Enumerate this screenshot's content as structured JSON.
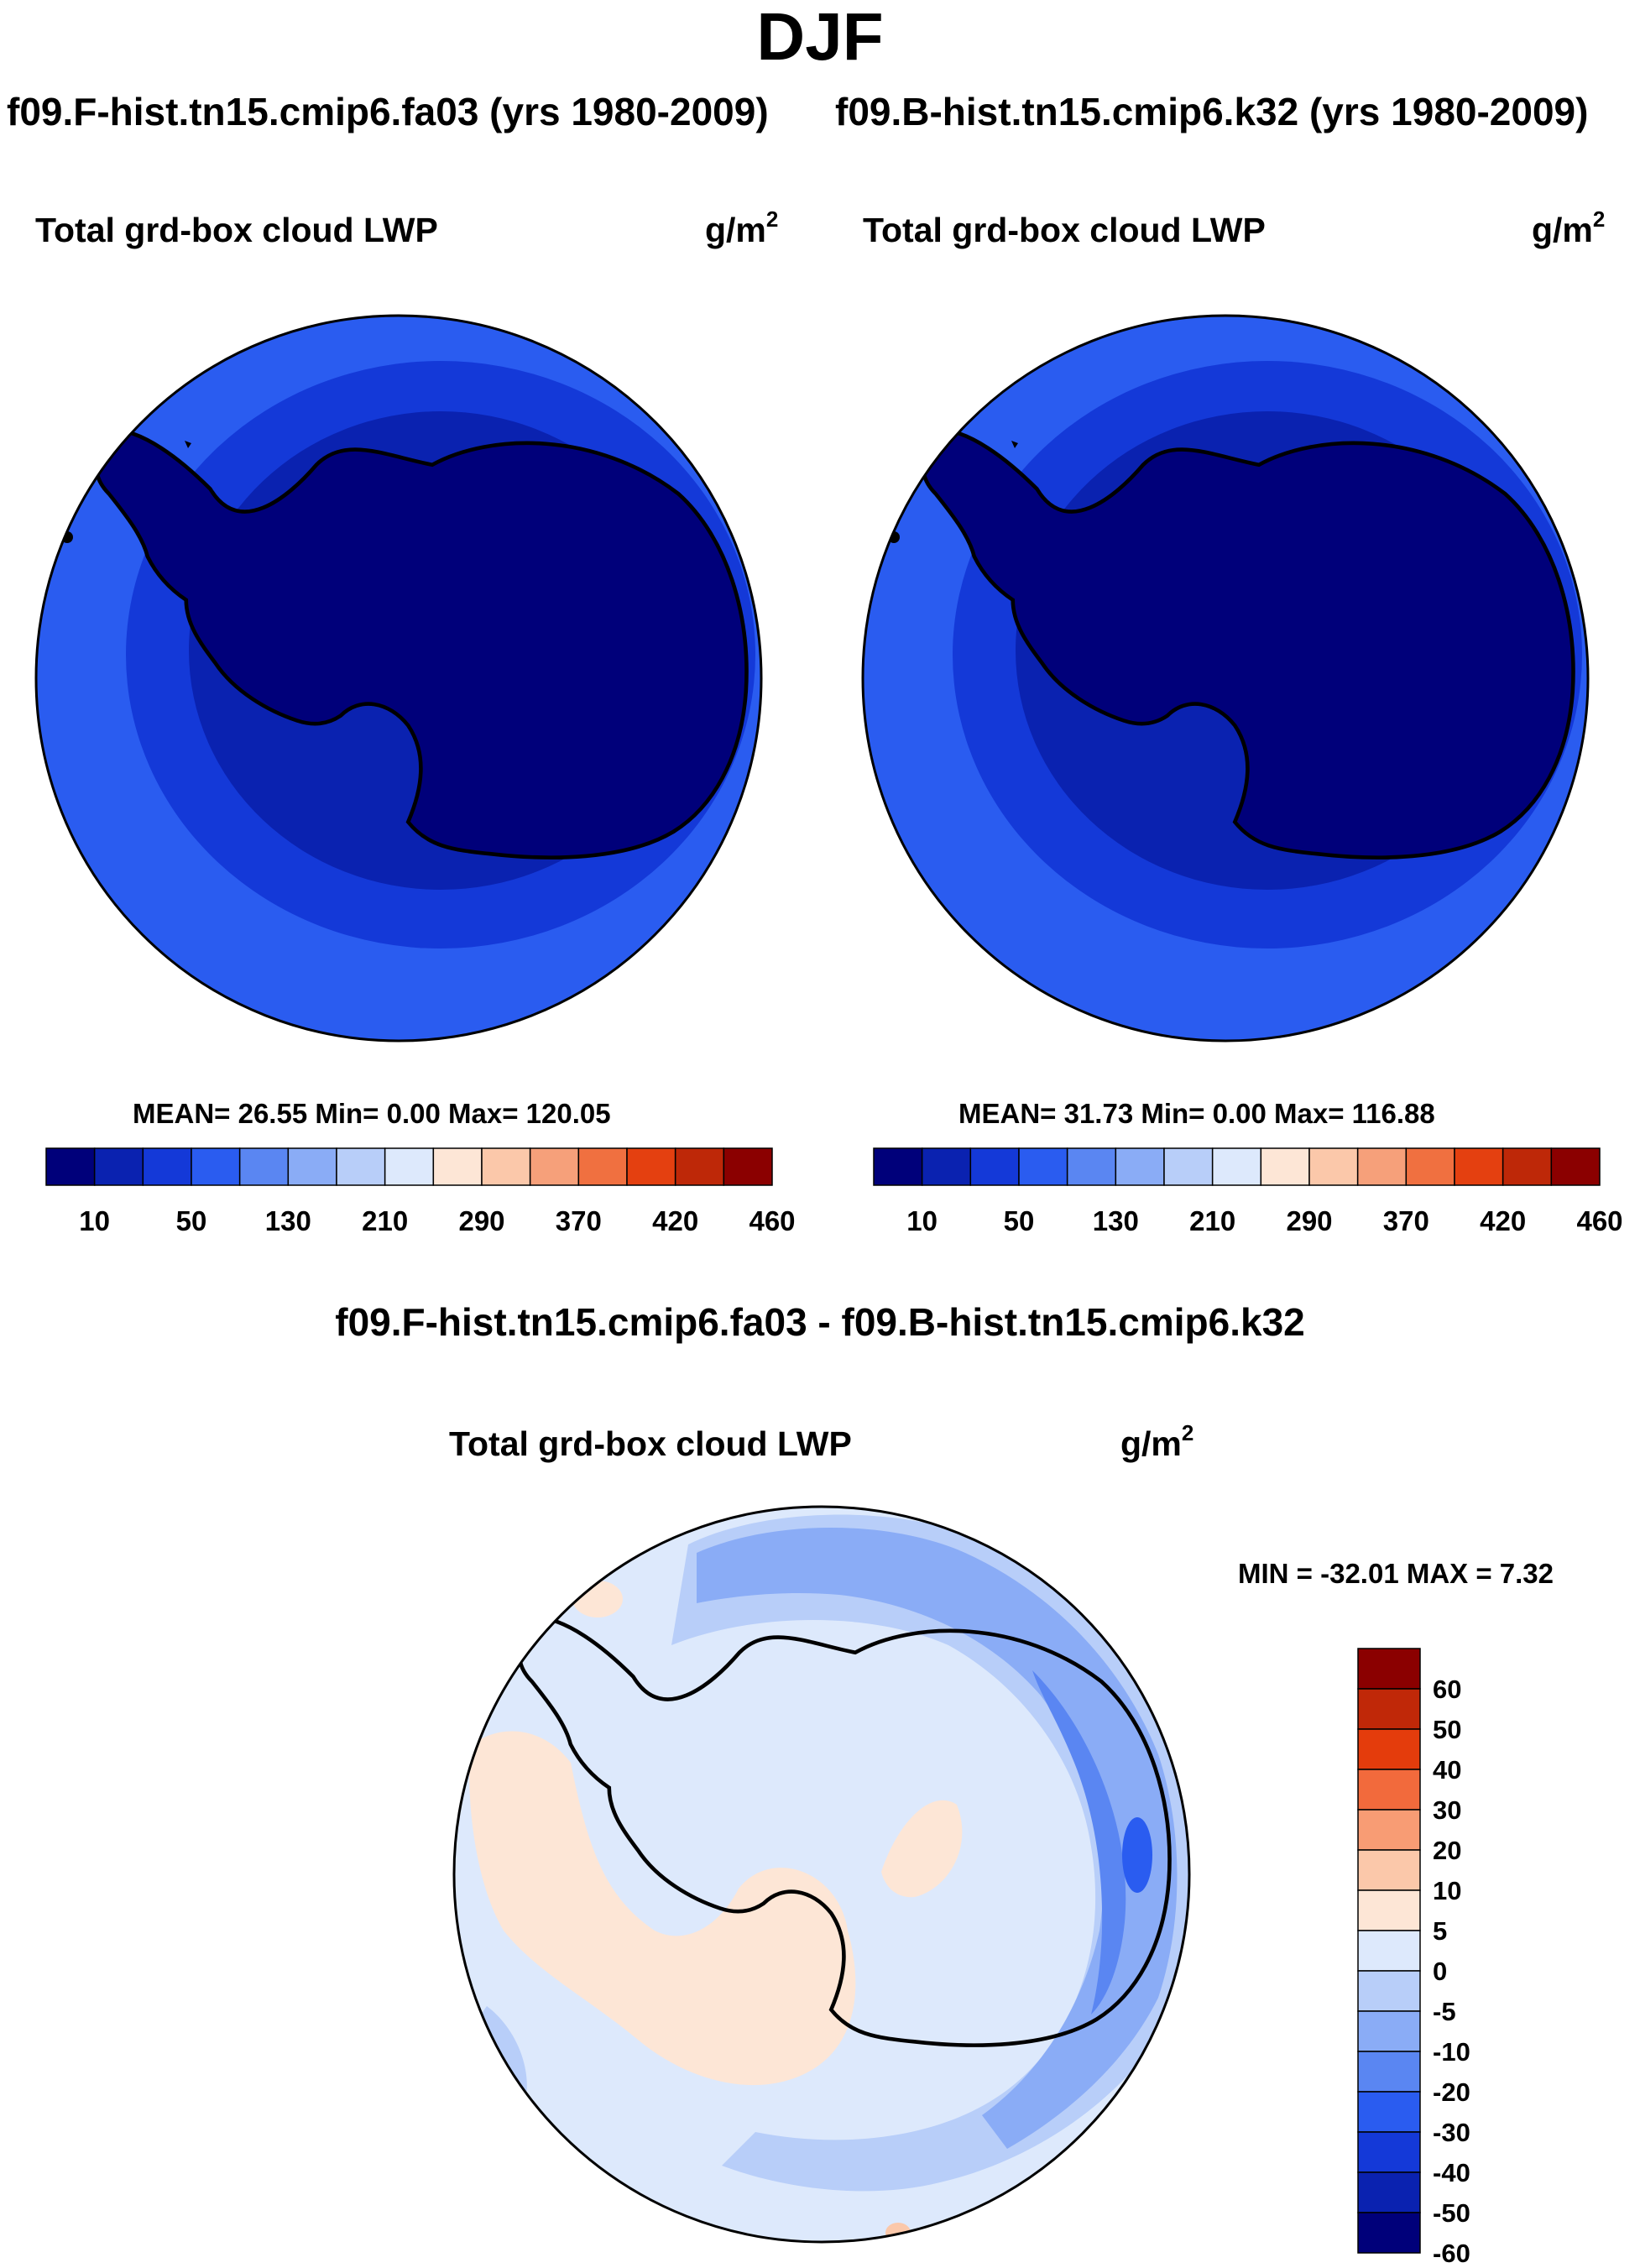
{
  "title": "DJF",
  "case_titles": {
    "left": "f09.F-hist.tn15.cmip6.fa03 (yrs 1980-2009)",
    "right": "f09.B-hist.tn15.cmip6.k32 (yrs 1980-2009)"
  },
  "panels": [
    {
      "label": "Total grd-box cloud LWP",
      "units_base": "g/m",
      "units_exp": "2",
      "stats": "MEAN=  26.55  Min=   0.00  Max= 120.05",
      "colorbar_labels": [
        "10",
        "50",
        "130",
        "210",
        "290",
        "370",
        "420",
        "460"
      ]
    },
    {
      "label": "Total grd-box cloud LWP",
      "units_base": "g/m",
      "units_exp": "2",
      "stats": "MEAN=  31.73  Min=   0.00  Max= 116.88",
      "colorbar_labels": [
        "10",
        "50",
        "130",
        "210",
        "290",
        "370",
        "420",
        "460"
      ]
    }
  ],
  "difference": {
    "title": "f09.F-hist.tn15.cmip6.fa03 - f09.B-hist.tn15.cmip6.k32",
    "label": "Total grd-box cloud LWP",
    "units_base": "g/m",
    "units_exp": "2",
    "minmax": "MIN = -32.01 MAX =   7.32",
    "colorbar_labels": [
      "60",
      "50",
      "40",
      "30",
      "20",
      "10",
      "5",
      "0",
      "-5",
      "-10",
      "-20",
      "-30",
      "-40",
      "-50",
      "-60"
    ]
  },
  "colors": {
    "abs_colorbar": [
      "#00007a",
      "#0a22b0",
      "#1439d8",
      "#2a5cf0",
      "#5a86f2",
      "#8aacf6",
      "#b8cef9",
      "#dde9fc",
      "#fde6d6",
      "#fbc8aa",
      "#f6a07a",
      "#f07040",
      "#e44010",
      "#be2808",
      "#8b0000"
    ],
    "diff_colorbar": [
      "#8b0000",
      "#c02808",
      "#e43c0c",
      "#f26a3c",
      "#f89c74",
      "#fbc8aa",
      "#fde6d6",
      "#dde9fc",
      "#b8cef9",
      "#8aacf6",
      "#5a86f2",
      "#2a5cf0",
      "#1439d8",
      "#0a22b0",
      "#00007a"
    ]
  }
}
